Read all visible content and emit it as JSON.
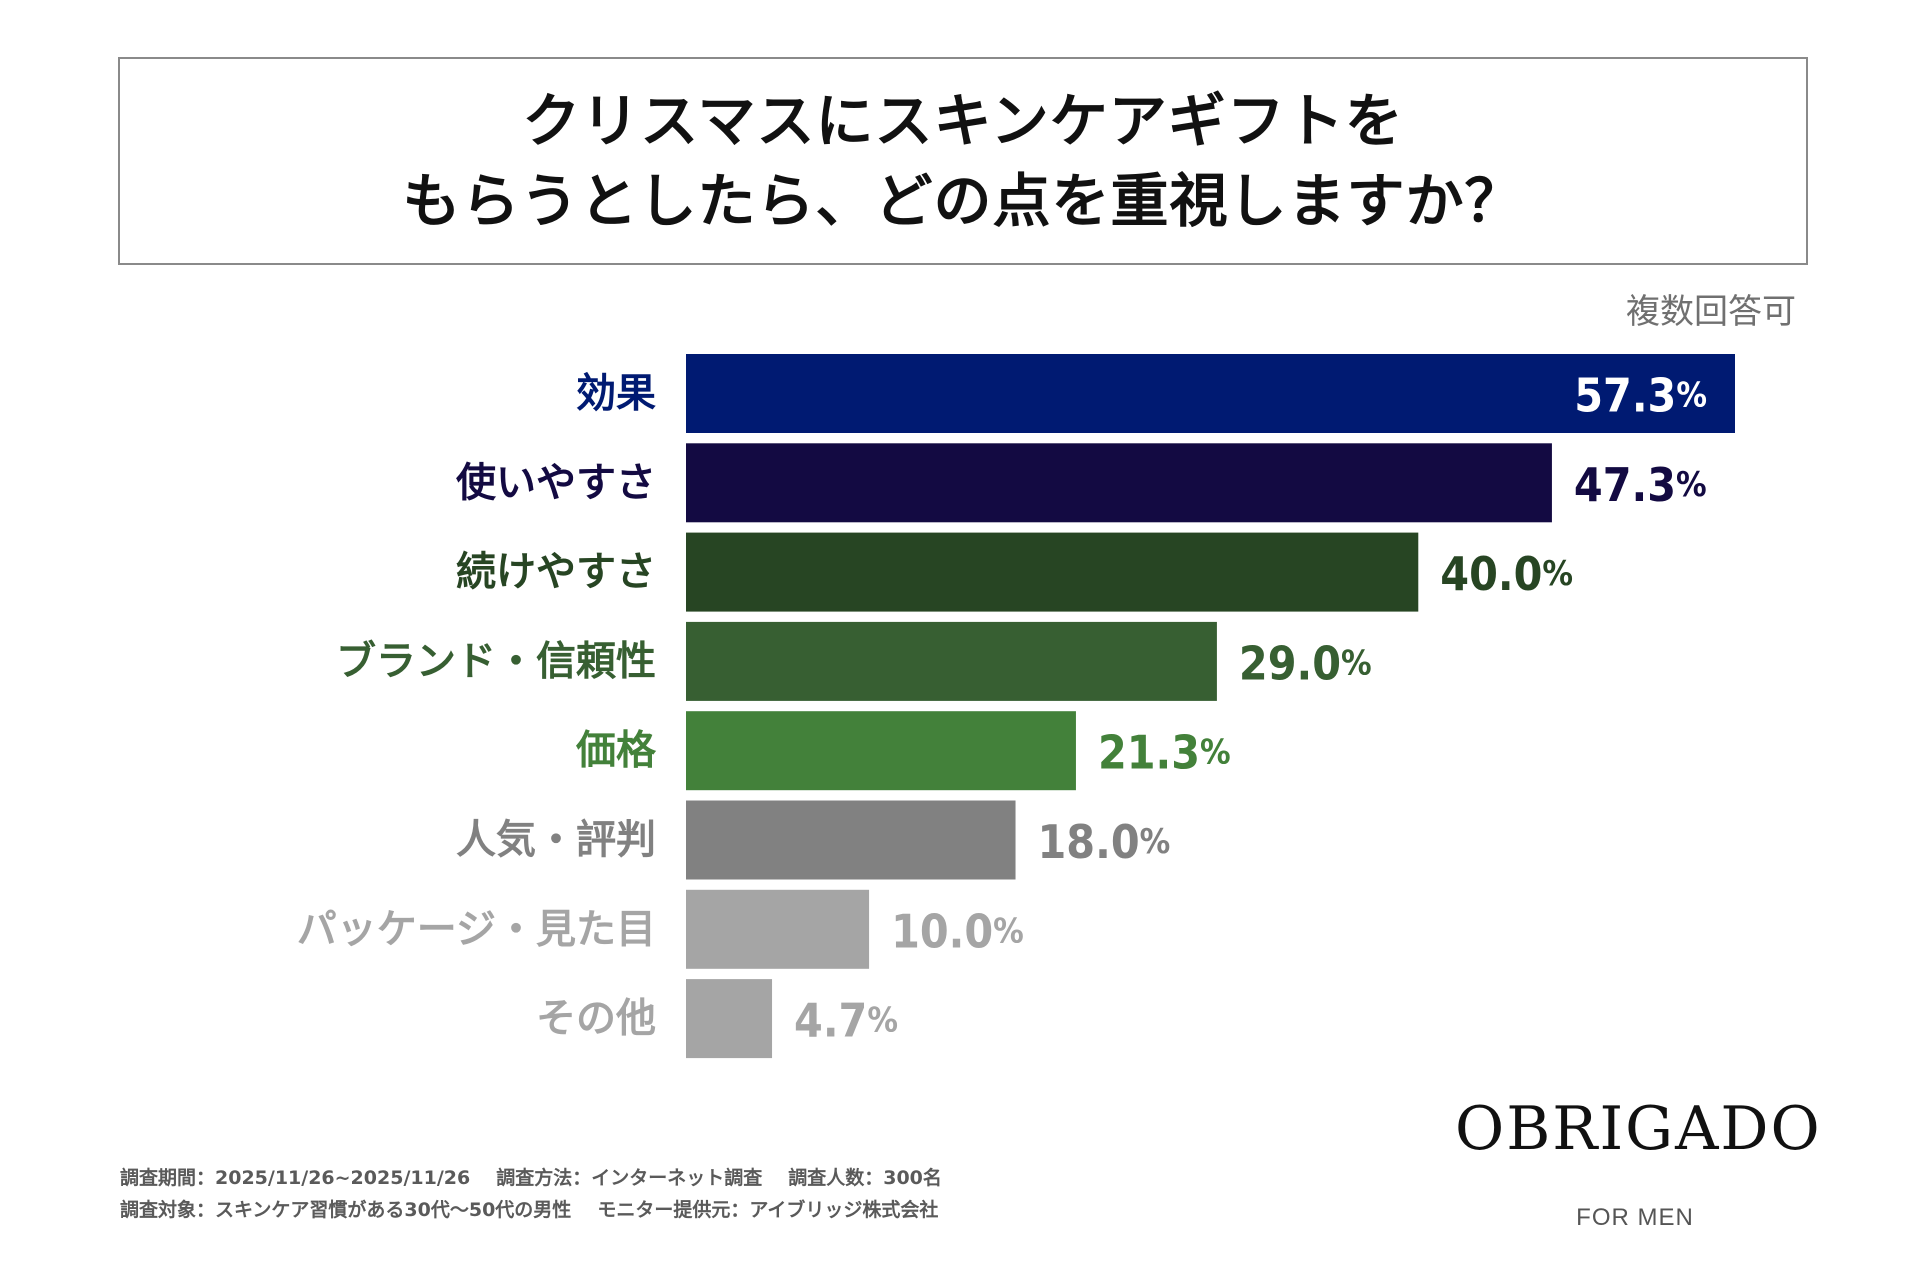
{
  "title": {
    "line1": "クリスマスにスキンケアギフトを",
    "line2": "もらうとしたら、どの点を重視しますか？"
  },
  "note": "複数回答可",
  "chart_data": {
    "type": "bar",
    "orientation": "horizontal",
    "categories": [
      "効果",
      "使いやすさ",
      "続けやすさ",
      "ブランド・信頼性",
      "価格",
      "人気・評判",
      "パッケージ・見た目",
      "その他"
    ],
    "values": [
      57.3,
      47.3,
      40.0,
      29.0,
      21.3,
      18.0,
      10.0,
      4.7
    ],
    "value_labels": [
      "57.3%",
      "47.3%",
      "40.0%",
      "29.0%",
      "21.3%",
      "18.0%",
      "10.0%",
      "4.7%"
    ],
    "bar_colors": [
      "#001a72",
      "#130a42",
      "#274523",
      "#375f32",
      "#43813a",
      "#818181",
      "#a5a5a5",
      "#a5a5a5"
    ],
    "label_colors": [
      "#001a72",
      "#130a42",
      "#274523",
      "#375f32",
      "#43813a",
      "#818181",
      "#a5a5a5",
      "#a5a5a5"
    ],
    "first_value_inside_bar": true,
    "title": "",
    "xlabel": "",
    "ylabel": "",
    "grid": false
  },
  "footnotes": {
    "line1": [
      "調査期間：2025/11/26~2025/11/26",
      "調査方法：インターネット調査",
      "調査人数：300名"
    ],
    "line2": [
      "調査対象：スキンケア習慣がある30代〜50代の男性",
      "モニター提供元：アイブリッジ株式会社"
    ]
  },
  "logo": {
    "name": "OBRIGADO",
    "tagline": "FOR MEN"
  }
}
